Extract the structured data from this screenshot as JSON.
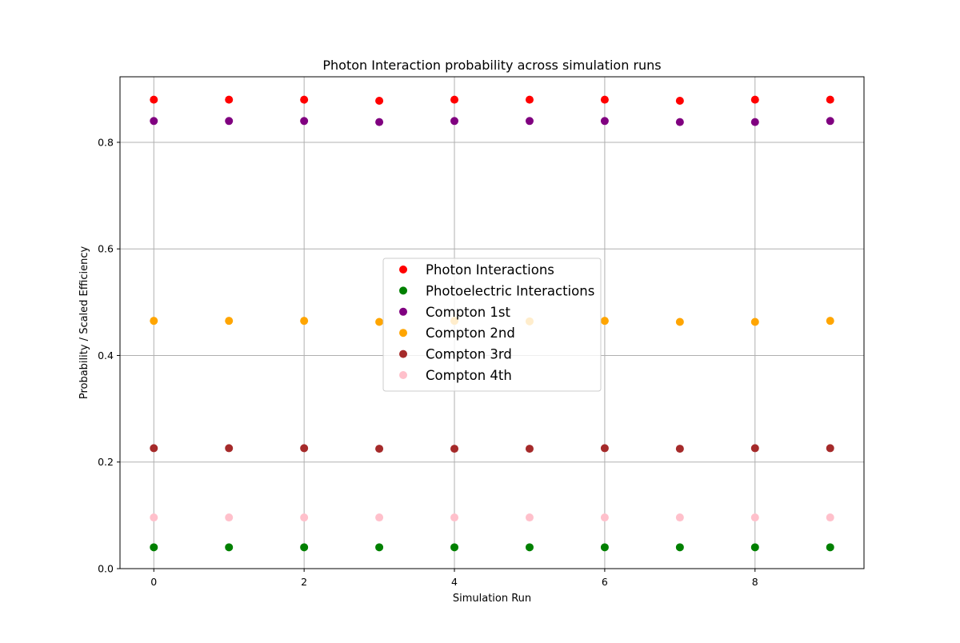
{
  "chart_data": {
    "type": "scatter",
    "title": "Photon Interaction probability across simulation runs",
    "xlabel": "Simulation Run",
    "ylabel": "Probability / Scaled Efficiency",
    "x": [
      0,
      1,
      2,
      3,
      4,
      5,
      6,
      7,
      8,
      9
    ],
    "xlim": [
      -0.45,
      9.45
    ],
    "ylim": [
      0.0,
      0.923
    ],
    "xticks": [
      0,
      2,
      4,
      6,
      8
    ],
    "yticks": [
      0.0,
      0.2,
      0.4,
      0.6,
      0.8
    ],
    "ytick_labels": [
      "0.0",
      "0.2",
      "0.4",
      "0.6",
      "0.8"
    ],
    "grid": true,
    "legend_position": "center",
    "series": [
      {
        "name": "Photon Interactions",
        "color": "#ff0000",
        "values": [
          0.88,
          0.88,
          0.88,
          0.878,
          0.88,
          0.88,
          0.88,
          0.878,
          0.88,
          0.88
        ]
      },
      {
        "name": "Photoelectric Interactions",
        "color": "#008000",
        "values": [
          0.04,
          0.04,
          0.04,
          0.04,
          0.04,
          0.04,
          0.04,
          0.04,
          0.04,
          0.04
        ]
      },
      {
        "name": "Compton 1st",
        "color": "#800080",
        "values": [
          0.84,
          0.84,
          0.84,
          0.838,
          0.84,
          0.84,
          0.84,
          0.838,
          0.838,
          0.84
        ]
      },
      {
        "name": "Compton 2nd",
        "color": "#ffa500",
        "values": [
          0.465,
          0.465,
          0.465,
          0.463,
          0.465,
          0.464,
          0.465,
          0.463,
          0.463,
          0.465
        ]
      },
      {
        "name": "Compton 3rd",
        "color": "#a52a2a",
        "values": [
          0.226,
          0.226,
          0.226,
          0.225,
          0.225,
          0.225,
          0.226,
          0.225,
          0.226,
          0.226
        ]
      },
      {
        "name": "Compton 4th",
        "color": "#ffc0cb",
        "values": [
          0.096,
          0.096,
          0.096,
          0.096,
          0.096,
          0.096,
          0.096,
          0.096,
          0.096,
          0.096
        ]
      }
    ]
  }
}
